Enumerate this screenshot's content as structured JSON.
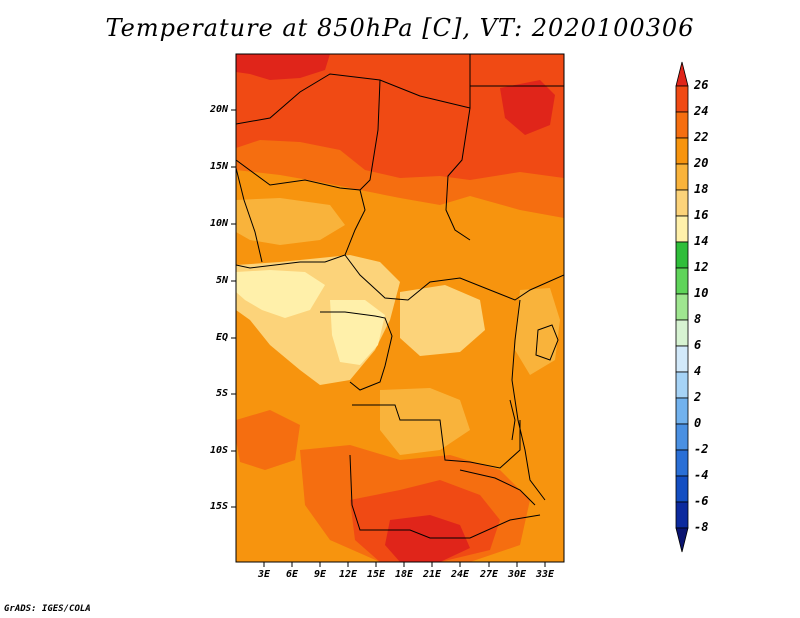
{
  "title": "Temperature at 850hPa [C], VT: 2020100306",
  "footer": "GrADS: IGES/COLA",
  "y_axis": [
    "20N",
    "15N",
    "10N",
    "5N",
    "EQ",
    "5S",
    "10S",
    "15S"
  ],
  "x_axis": [
    "3E",
    "6E",
    "9E",
    "12E",
    "15E",
    "18E",
    "21E",
    "24E",
    "27E",
    "30E",
    "33E"
  ],
  "colorbar": {
    "labels": [
      "26",
      "24",
      "22",
      "20",
      "18",
      "16",
      "14",
      "12",
      "10",
      "8",
      "6",
      "4",
      "2",
      "0",
      "-2",
      "-4",
      "-6",
      "-8"
    ],
    "colors": [
      "#e0251a",
      "#f04a14",
      "#f56e10",
      "#f7940e",
      "#f9b33b",
      "#fcd37a",
      "#fff0aa",
      "#2fbe3a",
      "#5fd45a",
      "#9fe690",
      "#d7f3d2",
      "#d2e9fa",
      "#a6d3f6",
      "#72b2ee",
      "#4a90e2",
      "#2a6fd6",
      "#134ec2",
      "#0c2a9e",
      "#0a1470"
    ]
  },
  "map": {
    "colors": {
      "c26": "#e0251a",
      "c24": "#f04a14",
      "c22": "#f56e10",
      "c20": "#f7940e",
      "c18": "#f9b33b",
      "c16": "#fcd37a",
      "c14": "#fff0aa"
    }
  }
}
